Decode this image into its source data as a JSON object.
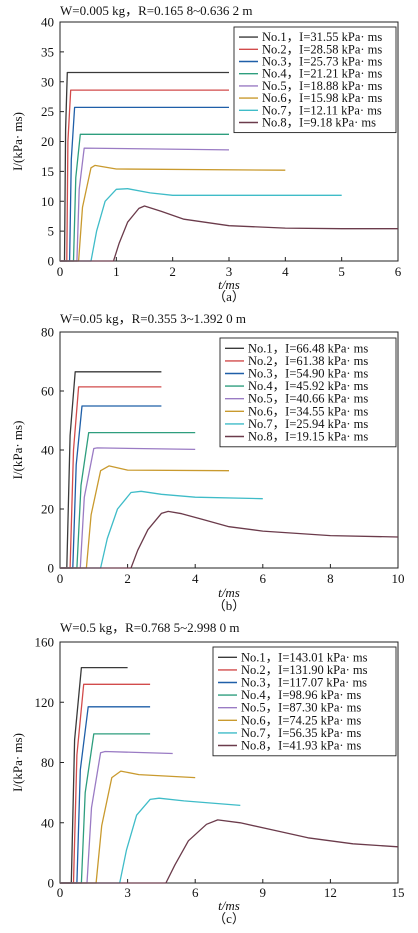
{
  "chart_data": [
    {
      "type": "line",
      "title": "W=0.005 kg，R=0.165 8~0.636 2 m",
      "xlabel": "t/ms",
      "ylabel": "I/(kPa· ms)",
      "caption": "（a）",
      "xlim": [
        0,
        6
      ],
      "ylim": [
        0,
        40
      ],
      "xticks": [
        0,
        1,
        2,
        3,
        4,
        5,
        6
      ],
      "yticks": [
        0,
        5,
        10,
        15,
        20,
        25,
        30,
        35,
        40
      ],
      "legend_position": "top-right",
      "series": [
        {
          "name": "No.1，I=31.55 kPa· ms",
          "color": "#3a3a3a",
          "x": [
            0,
            0.08,
            0.1,
            0.13,
            3.0
          ],
          "y": [
            0,
            0,
            22,
            31.55,
            31.55
          ]
        },
        {
          "name": "No.2，I=28.58 kPa· ms",
          "color": "#d24b4b",
          "x": [
            0,
            0.12,
            0.14,
            0.19,
            3.0
          ],
          "y": [
            0,
            0,
            20,
            28.6,
            28.6
          ]
        },
        {
          "name": "No.3，I=25.73 kPa· ms",
          "color": "#1f5fa8",
          "x": [
            0,
            0.17,
            0.2,
            0.26,
            3.0
          ],
          "y": [
            0,
            0,
            17,
            25.7,
            25.7
          ]
        },
        {
          "name": "No.4，I=21.21 kPa· ms",
          "color": "#2e9e7e",
          "x": [
            0,
            0.24,
            0.28,
            0.36,
            3.0
          ],
          "y": [
            0,
            0,
            14,
            21.2,
            21.2
          ]
        },
        {
          "name": "No.5，I=18.88 kPa· ms",
          "color": "#9a7bc4",
          "x": [
            0,
            0.3,
            0.34,
            0.43,
            3.0
          ],
          "y": [
            0,
            0,
            12,
            18.9,
            18.6
          ]
        },
        {
          "name": "No.6，I=15.98 kPa· ms",
          "color": "#c99a2e",
          "x": [
            0,
            0.33,
            0.4,
            0.55,
            0.62,
            1.0,
            4.0
          ],
          "y": [
            0,
            0,
            9,
            15.6,
            16.0,
            15.4,
            15.2
          ]
        },
        {
          "name": "No.7，I=12.11 kPa· ms",
          "color": "#3fbcc8",
          "x": [
            0,
            0.55,
            0.65,
            0.8,
            1.0,
            1.2,
            1.6,
            2.0,
            3.0,
            5.0
          ],
          "y": [
            0,
            0,
            5,
            10,
            12.0,
            12.1,
            11.4,
            11.0,
            11.0,
            11.0
          ]
        },
        {
          "name": "No.8，I=9.18 kPa· ms",
          "color": "#6b3b4b",
          "x": [
            0,
            0.95,
            1.05,
            1.2,
            1.4,
            1.5,
            1.8,
            2.2,
            3.0,
            4.0,
            5.0,
            6.0
          ],
          "y": [
            0,
            0,
            3,
            6.5,
            8.8,
            9.2,
            8.3,
            7.0,
            5.9,
            5.5,
            5.4,
            5.4
          ]
        }
      ]
    },
    {
      "type": "line",
      "title": "W=0.05 kg，R=0.355 3~1.392 0 m",
      "xlabel": "t/ms",
      "ylabel": "I/(kPa· ms)",
      "caption": "（b）",
      "xlim": [
        0,
        10
      ],
      "ylim": [
        0,
        80
      ],
      "xticks": [
        0,
        2,
        4,
        6,
        8,
        10
      ],
      "yticks": [
        0,
        20,
        40,
        60,
        80
      ],
      "legend_position": "top-right",
      "series": [
        {
          "name": "No.1，I=66.48 kPa· ms",
          "color": "#3a3a3a",
          "x": [
            0,
            0.2,
            0.3,
            0.45,
            3.0
          ],
          "y": [
            0,
            0,
            45,
            66.5,
            66.5
          ]
        },
        {
          "name": "No.2，I=61.38 kPa· ms",
          "color": "#d24b4b",
          "x": [
            0,
            0.3,
            0.4,
            0.55,
            3.0
          ],
          "y": [
            0,
            0,
            40,
            61.4,
            61.4
          ]
        },
        {
          "name": "No.3，I=54.90 kPa· ms",
          "color": "#1f5fa8",
          "x": [
            0,
            0.38,
            0.48,
            0.65,
            3.0
          ],
          "y": [
            0,
            0,
            35,
            54.9,
            54.9
          ]
        },
        {
          "name": "No.4，I=45.92 kPa· ms",
          "color": "#2e9e7e",
          "x": [
            0,
            0.5,
            0.62,
            0.85,
            4.0
          ],
          "y": [
            0,
            0,
            28,
            45.9,
            45.9
          ]
        },
        {
          "name": "No.5，I=40.66 kPa· ms",
          "color": "#9a7bc4",
          "x": [
            0,
            0.6,
            0.72,
            1.0,
            1.1,
            4.0
          ],
          "y": [
            0,
            0,
            24,
            40.5,
            40.7,
            40.2
          ]
        },
        {
          "name": "No.6，I=34.55 kPa· ms",
          "color": "#c99a2e",
          "x": [
            0,
            0.78,
            0.92,
            1.2,
            1.45,
            2.0,
            5.0
          ],
          "y": [
            0,
            0,
            18,
            33,
            34.6,
            33.2,
            33.0
          ]
        },
        {
          "name": "No.7，I=25.94 kPa· ms",
          "color": "#3fbcc8",
          "x": [
            0,
            1.2,
            1.4,
            1.7,
            2.1,
            2.4,
            3.0,
            4.0,
            6.0
          ],
          "y": [
            0,
            0,
            10,
            20,
            25.6,
            26.0,
            25.0,
            24.0,
            23.5
          ]
        },
        {
          "name": "No.8，I=19.15 kPa· ms",
          "color": "#6b3b4b",
          "x": [
            0,
            2.1,
            2.3,
            2.6,
            3.0,
            3.2,
            3.6,
            4.2,
            5.0,
            6.0,
            8.0,
            10.0
          ],
          "y": [
            0,
            0,
            6,
            13,
            18.5,
            19.2,
            18.4,
            16.5,
            14.0,
            12.5,
            11.0,
            10.5
          ]
        }
      ]
    },
    {
      "type": "line",
      "title": "W=0.5 kg，R=0.768 5~2.998 0 m",
      "xlabel": "t/ms",
      "ylabel": "I/(kPa· ms)",
      "caption": "（c）",
      "xlim": [
        0,
        15
      ],
      "ylim": [
        0,
        160
      ],
      "xticks": [
        0,
        3,
        6,
        9,
        12,
        15
      ],
      "yticks": [
        0,
        40,
        80,
        120,
        160
      ],
      "legend_position": "top-right",
      "series": [
        {
          "name": "No.1，I=143.01 kPa· ms",
          "color": "#3a3a3a",
          "x": [
            0,
            0.5,
            0.65,
            0.95,
            3.0
          ],
          "y": [
            0,
            0,
            95,
            143,
            143
          ]
        },
        {
          "name": "No.2，I=131.90 kPa· ms",
          "color": "#d24b4b",
          "x": [
            0,
            0.6,
            0.75,
            1.05,
            4.0
          ],
          "y": [
            0,
            0,
            85,
            131.9,
            131.9
          ]
        },
        {
          "name": "No.3，I=117.07 kPa· ms",
          "color": "#1f5fa8",
          "x": [
            0,
            0.75,
            0.9,
            1.25,
            4.0
          ],
          "y": [
            0,
            0,
            75,
            117,
            117
          ]
        },
        {
          "name": "No.4，I=98.96 kPa· ms",
          "color": "#2e9e7e",
          "x": [
            0,
            0.95,
            1.12,
            1.5,
            4.0
          ],
          "y": [
            0,
            0,
            60,
            99,
            99
          ]
        },
        {
          "name": "No.5，I=87.30 kPa· ms",
          "color": "#9a7bc4",
          "x": [
            0,
            1.2,
            1.4,
            1.8,
            2.0,
            5.0
          ],
          "y": [
            0,
            0,
            50,
            86.5,
            87.3,
            86
          ]
        },
        {
          "name": "No.6，I=74.25 kPa· ms",
          "color": "#c99a2e",
          "x": [
            0,
            1.6,
            1.85,
            2.3,
            2.7,
            3.5,
            6.0
          ],
          "y": [
            0,
            0,
            38,
            70,
            74.3,
            72,
            70
          ]
        },
        {
          "name": "No.7，I=56.35 kPa· ms",
          "color": "#3fbcc8",
          "x": [
            0,
            2.65,
            2.95,
            3.4,
            4.0,
            4.4,
            5.5,
            8.0
          ],
          "y": [
            0,
            0,
            22,
            45,
            55.5,
            56.3,
            54.5,
            51.5
          ]
        },
        {
          "name": "No.8，I=41.93 kPa· ms",
          "color": "#6b3b4b",
          "x": [
            0,
            4.7,
            5.1,
            5.7,
            6.5,
            7.0,
            8.0,
            9.5,
            11.0,
            13.0,
            15.0
          ],
          "y": [
            0,
            0,
            12,
            28,
            39,
            41.9,
            40,
            35,
            30,
            26,
            24
          ]
        }
      ]
    }
  ]
}
